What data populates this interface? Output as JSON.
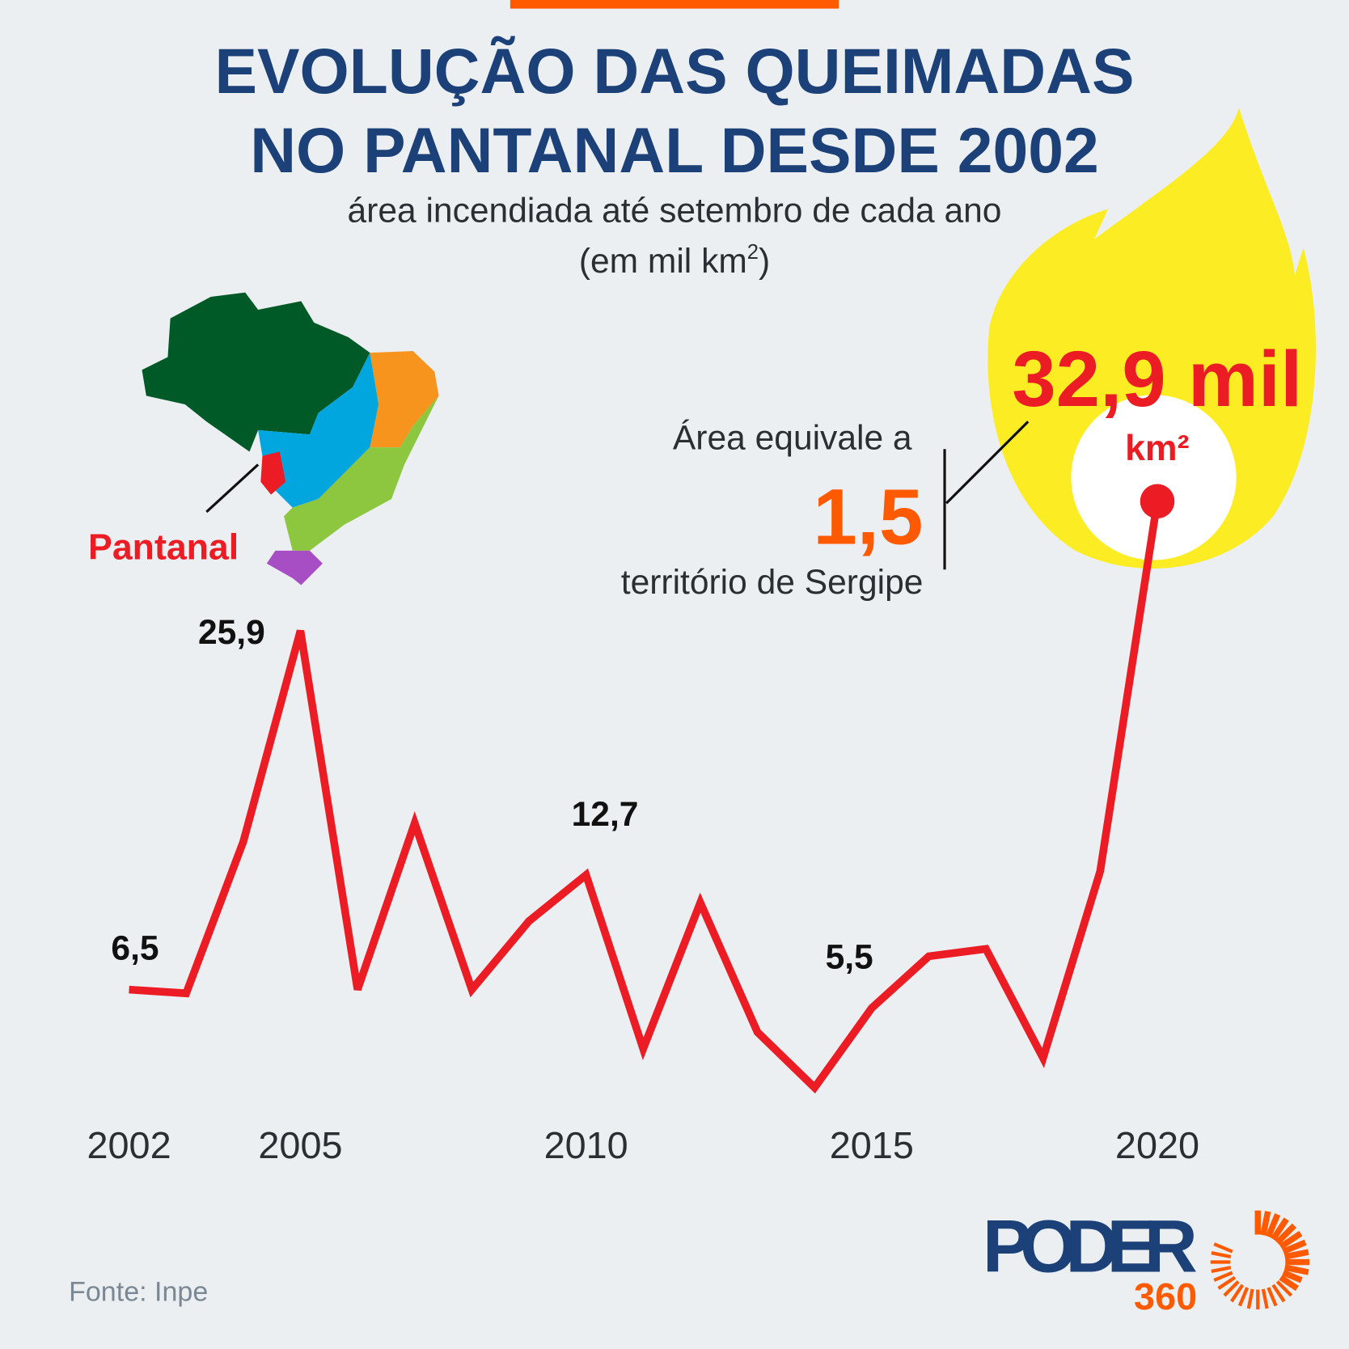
{
  "header": {
    "title_line1": "EVOLUÇÃO DAS QUEIMADAS",
    "title_line2": "NO PANTANAL DESDE 2002",
    "subtitle_line1": "área incendiada até setembro de cada ano",
    "subtitle_line2": "(em mil km",
    "subtitle_sup": "2",
    "subtitle_close": ")"
  },
  "map": {
    "label": "Pantanal"
  },
  "highlight": {
    "value": "32,9 mil",
    "unit": "km²",
    "compare_intro": "Área equivale a",
    "compare_value": "1,5",
    "compare_outro": "território de Sergipe"
  },
  "footer": {
    "source": "Fonte: Inpe",
    "logo_text": "PODER",
    "logo_sub": "360"
  },
  "colors": {
    "line": "#ec1c24",
    "title": "#1b4178",
    "accent": "#ff5a00",
    "flame": "#fcec24",
    "background": "#eceff2"
  },
  "chart_data": {
    "type": "line",
    "title": "Evolução das queimadas no Pantanal desde 2002",
    "ylabel": "mil km²",
    "x": [
      2002,
      2003,
      2004,
      2005,
      2006,
      2007,
      2008,
      2009,
      2010,
      2011,
      2012,
      2013,
      2014,
      2015,
      2016,
      2017,
      2018,
      2019,
      2020
    ],
    "values": [
      6.5,
      6.3,
      14.5,
      25.9,
      6.5,
      15.5,
      6.5,
      10.2,
      12.7,
      3.3,
      11.2,
      4.2,
      1.2,
      5.5,
      8.3,
      8.7,
      2.8,
      12.9,
      32.9
    ],
    "x_ticks": [
      "2002",
      "2005",
      "2010",
      "2015",
      "2020"
    ],
    "data_labels": [
      {
        "year": 2002,
        "text": "6,5"
      },
      {
        "year": 2005,
        "text": "25,9"
      },
      {
        "year": 2010,
        "text": "12,7"
      },
      {
        "year": 2015,
        "text": "5,5"
      }
    ],
    "ylim": [
      0,
      35
    ],
    "grid": false
  }
}
